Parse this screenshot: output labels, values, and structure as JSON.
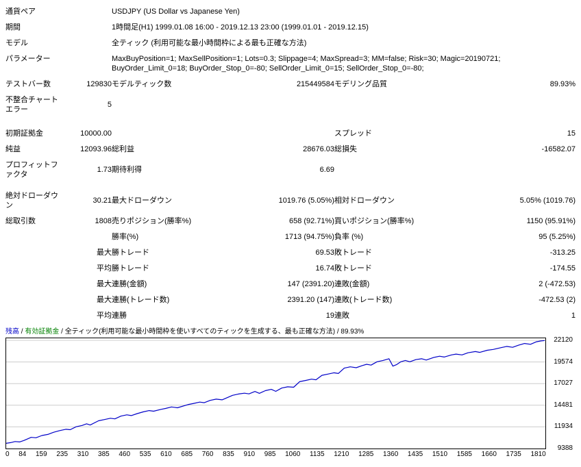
{
  "report": {
    "wide_rows": [
      {
        "label": "通貨ペア",
        "value": "USDJPY (US Dollar vs Japanese Yen)"
      },
      {
        "label": "期間",
        "value": "1時間足(H1) 1999.01.08 16:00 - 2019.12.13 23:00 (1999.01.01 - 2019.12.15)"
      },
      {
        "label": "モデル",
        "value": "全ティック (利用可能な最小時間枠による最も正確な方法)"
      },
      {
        "label": "パラメーター",
        "value": "MaxBuyPosition=1; MaxSellPosition=1; Lots=0.3; Slippage=4; MaxSpread=3; MM=false; Risk=30; Magic=20190721; BuyOrder_Limit_0=18; BuyOrder_Stop_0=-80; SellOrder_Limit_0=15; SellOrder_Stop_0=-80;"
      }
    ],
    "stat_rows": [
      {
        "c1": "テストバー数",
        "c2": "129830",
        "c3": "モデルティック数",
        "c4": "215449584",
        "c5": "モデリング品質",
        "c6": "89.93%"
      },
      {
        "c1": "不整合チャートエラー",
        "c2": "5",
        "c3": "",
        "c4": "",
        "c5": "",
        "c6": ""
      },
      {
        "c1": "初期証拠金",
        "c2": "10000.00",
        "c3": "",
        "c4": "",
        "c5": "スプレッド",
        "c6": "15"
      },
      {
        "c1": "純益",
        "c2": "12093.96",
        "c3": "総利益",
        "c4": "28676.03",
        "c5": "総損失",
        "c6": "-16582.07"
      },
      {
        "c1": "プロフィットファクタ",
        "c2": "1.73",
        "c3": "期待利得",
        "c4": "6.69",
        "c5": "",
        "c6": ""
      },
      {
        "c1": "絶対ドローダウン",
        "c2": "30.21",
        "c3": "最大ドローダウン",
        "c4": "1019.76 (5.05%)",
        "c5": "相対ドローダウン",
        "c6": "5.05% (1019.76)"
      },
      {
        "c1": "総取引数",
        "c2": "1808",
        "c3": "売りポジション(勝率%)",
        "c4": "658 (92.71%)",
        "c5": "買いポジション(勝率%)",
        "c6": "1150 (95.91%)"
      },
      {
        "c1": "",
        "c2": "",
        "c3": "勝率(%)",
        "c4": "1713 (94.75%)",
        "c5": "負率 (%)",
        "c6": "95 (5.25%)"
      },
      {
        "c1": "",
        "c2": "最大",
        "c3": "勝トレード",
        "c4": "69.53",
        "c5": "敗トレード",
        "c6": "-313.25"
      },
      {
        "c1": "",
        "c2": "平均",
        "c3": "勝トレード",
        "c4": "16.74",
        "c5": "敗トレード",
        "c6": "-174.55"
      },
      {
        "c1": "",
        "c2": "最大",
        "c3": "連勝(金額)",
        "c4": "147 (2391.20)",
        "c5": "連敗(金額)",
        "c6": "2 (-472.53)"
      },
      {
        "c1": "",
        "c2": "最大",
        "c3": "連勝(トレード数)",
        "c4": "2391.20 (147)",
        "c5": "連敗(トレード数)",
        "c6": "-472.53 (2)"
      },
      {
        "c1": "",
        "c2": "平均",
        "c3": "連勝",
        "c4": "19",
        "c5": "連敗",
        "c6": "1"
      }
    ]
  },
  "chart": {
    "caption": {
      "balance_label": "残高",
      "equity_label": "有効証拠金",
      "method": "全ティック(利用可能な最小時間枠を使いすべてのティックを生成する、最も正確な方法)",
      "quality": "89.93%",
      "separator": " / "
    },
    "colors": {
      "balance": "#0000c8",
      "equity": "#008000",
      "grid": "#cccccc"
    }
  },
  "chart_data": {
    "type": "line",
    "title": "残高 / 有効証拠金 / 全ティック(利用可能な最小時間枠を使いすべてのティックを生成する、最も正確な方法) / 89.93%",
    "xlabel": "",
    "ylabel": "",
    "xlim": [
      0,
      1810
    ],
    "ylim": [
      9388,
      22120
    ],
    "x_ticks": [
      0,
      84,
      159,
      235,
      310,
      385,
      460,
      535,
      610,
      685,
      760,
      835,
      910,
      985,
      1060,
      1135,
      1210,
      1285,
      1360,
      1435,
      1510,
      1585,
      1660,
      1735,
      1810
    ],
    "y_ticks": [
      9388,
      11934,
      14481,
      17027,
      19574,
      22120
    ],
    "grid": "horizontal",
    "legend_position": "top-left-caption",
    "series": [
      {
        "name": "残高",
        "x": [
          0,
          15,
          30,
          45,
          60,
          84,
          100,
          120,
          140,
          159,
          180,
          200,
          215,
          235,
          255,
          270,
          282,
          310,
          330,
          350,
          365,
          385,
          405,
          420,
          440,
          460,
          480,
          495,
          520,
          535,
          555,
          575,
          610,
          630,
          650,
          665,
          685,
          705,
          725,
          760,
          780,
          800,
          815,
          835,
          850,
          870,
          890,
          905,
          925,
          945,
          965,
          985,
          1005,
          1025,
          1040,
          1060,
          1080,
          1100,
          1115,
          1135,
          1155,
          1175,
          1195,
          1210,
          1225,
          1245,
          1265,
          1285,
          1298,
          1310,
          1325,
          1340,
          1355,
          1375,
          1395,
          1410,
          1435,
          1455,
          1470,
          1495,
          1510,
          1530,
          1550,
          1575,
          1590,
          1615,
          1635,
          1660,
          1680,
          1700,
          1720,
          1740,
          1760,
          1780,
          1795,
          1808
        ],
        "y": [
          10000,
          10080,
          10210,
          10160,
          10340,
          10700,
          10650,
          10920,
          11050,
          11300,
          11500,
          11650,
          11600,
          11950,
          12100,
          12300,
          12150,
          12650,
          12800,
          12950,
          12880,
          13200,
          13350,
          13260,
          13500,
          13700,
          13850,
          13780,
          14000,
          14100,
          14280,
          14180,
          14550,
          14700,
          14850,
          14780,
          15050,
          15200,
          15120,
          15650,
          15800,
          15900,
          15820,
          16100,
          15880,
          16200,
          16350,
          16120,
          16500,
          16650,
          16600,
          17250,
          17400,
          17550,
          17480,
          18000,
          18150,
          18300,
          18220,
          18850,
          19000,
          18900,
          19150,
          19300,
          19200,
          19600,
          19750,
          19950,
          19080,
          19250,
          19600,
          19750,
          19600,
          19850,
          19950,
          19800,
          20100,
          20250,
          20150,
          20400,
          20500,
          20400,
          20650,
          20800,
          20700,
          20950,
          21050,
          21250,
          21400,
          21300,
          21550,
          21750,
          21650,
          21950,
          22050,
          22094
        ]
      }
    ]
  }
}
